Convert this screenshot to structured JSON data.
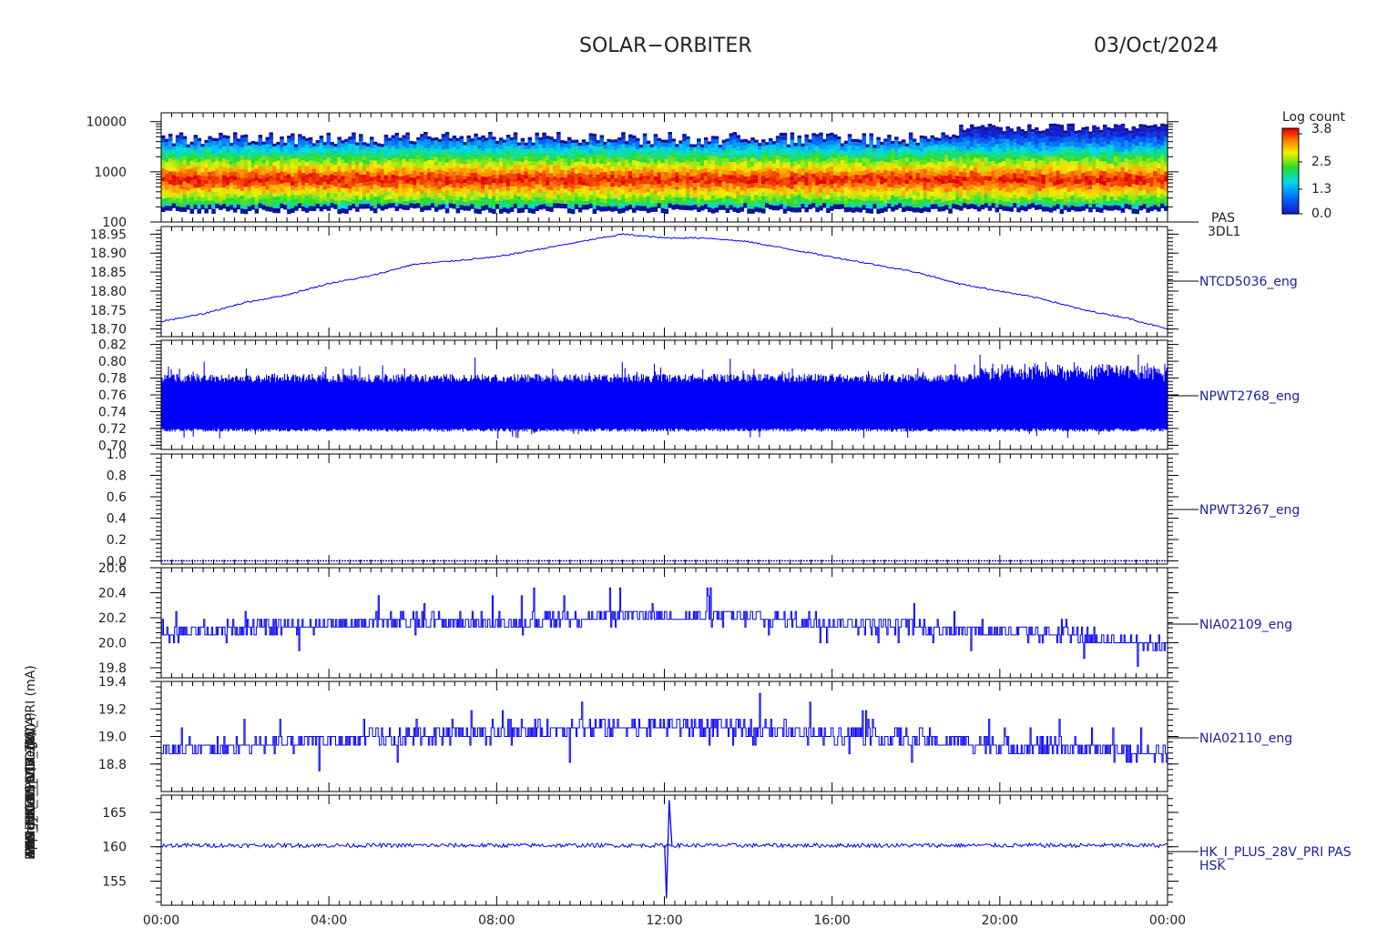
{
  "header": {
    "title": "SOLAR−ORBITER",
    "date": "03/Oct/2024"
  },
  "y_labels": [
    "Energy (eV)",
    "Approx Temp (Deg C)",
    "ANA_TEMP_RCV_TX (A)",
    "TEMP_SCM_OUT (A)",
    "PAS_HK_PS_VCC (V)",
    "PAS_HK_PS_VDD (V)",
    "PAS_HK_I_PLUS_28V_PRI (mA)"
  ],
  "colorbar": {
    "title": "Log count",
    "ticks": [
      "3.8",
      "2.5",
      "1.3",
      "0.0"
    ]
  },
  "time_axis": [
    "00:00",
    "04:00",
    "08:00",
    "12:00",
    "16:00",
    "20:00",
    "00:00"
  ],
  "chart_data": [
    {
      "type": "heatmap",
      "ylabel": "Energy (eV)",
      "yscale": "log",
      "ylim": [
        100,
        15000
      ],
      "yticks": [
        "10000",
        "1000",
        "100"
      ],
      "colorbar_range": [
        0.0,
        3.8
      ],
      "peak_energy_eV_approx": 700,
      "right_labels": [
        "PAS",
        "3DL1"
      ],
      "x": [
        "00:00",
        "24:00"
      ]
    },
    {
      "type": "line",
      "ylabel": "Approx Temp (Deg C)",
      "ylim": [
        18.68,
        18.97
      ],
      "yticks": [
        "18.95",
        "18.90",
        "18.85",
        "18.80",
        "18.75",
        "18.70"
      ],
      "series": [
        {
          "name": "NTCD5036_eng",
          "color": "#0000ff",
          "x_hours": [
            0,
            1,
            2,
            3,
            4,
            5,
            6,
            7,
            8,
            9,
            10,
            11,
            12,
            13,
            14,
            15,
            16,
            17,
            18,
            19,
            20,
            21,
            22,
            23,
            24
          ],
          "values": [
            18.72,
            18.74,
            18.77,
            18.79,
            18.82,
            18.84,
            18.87,
            18.88,
            18.89,
            18.91,
            18.93,
            18.95,
            18.94,
            18.94,
            18.93,
            18.91,
            18.89,
            18.87,
            18.85,
            18.82,
            18.8,
            18.78,
            18.75,
            18.73,
            18.7
          ]
        }
      ]
    },
    {
      "type": "line",
      "ylabel": "ANA_TEMP_RCV_TX (A)",
      "ylim": [
        0.695,
        0.825
      ],
      "yticks": [
        "0.82",
        "0.80",
        "0.78",
        "0.76",
        "0.74",
        "0.72",
        "0.70"
      ],
      "series": [
        {
          "name": "NPWT2768_eng",
          "color": "#0000ff",
          "band": [
            0.72,
            0.775
          ],
          "range": [
            0.702,
            0.815
          ]
        }
      ]
    },
    {
      "type": "line",
      "ylabel": "TEMP_SCM_OUT (A)",
      "ylim": [
        -0.03,
        1.0
      ],
      "yticks": [
        "1.0",
        "0.8",
        "0.6",
        "0.4",
        "0.2",
        "0.0"
      ],
      "series": [
        {
          "name": "NPWT3267_eng",
          "color": "#0000ff",
          "constant": 0.0
        }
      ]
    },
    {
      "type": "line",
      "ylabel": "PAS_HK_PS_VCC (V)",
      "ylim": [
        19.72,
        20.6
      ],
      "yticks": [
        "20.6",
        "20.4",
        "20.2",
        "20.0",
        "19.8"
      ],
      "series": [
        {
          "name": "NIA02109_eng",
          "color": "#0000ff",
          "x_hours": [
            0,
            2,
            4,
            6,
            8,
            10,
            12,
            14,
            16,
            18,
            20,
            22,
            24
          ],
          "values": [
            20.07,
            20.12,
            20.15,
            20.17,
            20.17,
            20.2,
            20.22,
            20.2,
            20.16,
            20.13,
            20.1,
            20.05,
            19.98
          ],
          "range": [
            19.8,
            20.55
          ]
        }
      ]
    },
    {
      "type": "line",
      "ylabel": "PAS_HK_PS_VDD (V)",
      "ylim": [
        18.6,
        19.4
      ],
      "yticks": [
        "19.4",
        "19.2",
        "19.0",
        "18.8"
      ],
      "series": [
        {
          "name": "NIA02110_eng",
          "color": "#0000ff",
          "x_hours": [
            0,
            2,
            4,
            6,
            8,
            10,
            12,
            14,
            16,
            18,
            20,
            22,
            24
          ],
          "values": [
            18.9,
            18.93,
            18.97,
            19.0,
            19.02,
            19.06,
            19.08,
            19.06,
            19.02,
            18.98,
            18.94,
            18.92,
            18.87
          ],
          "range": [
            18.7,
            19.35
          ]
        }
      ]
    },
    {
      "type": "line",
      "ylabel": "PAS_HK_I_PLUS_28V_PRI (mA)",
      "ylim": [
        151.5,
        167.5
      ],
      "yticks": [
        "165",
        "160",
        "155"
      ],
      "series": [
        {
          "name": "HK_I_PLUS_28V_PRI PAS HSK",
          "color": "#0000ff",
          "baseline": 160.2,
          "spike": {
            "x_hour": 12.05,
            "min": 152.5,
            "max": 166.8
          }
        }
      ]
    }
  ]
}
